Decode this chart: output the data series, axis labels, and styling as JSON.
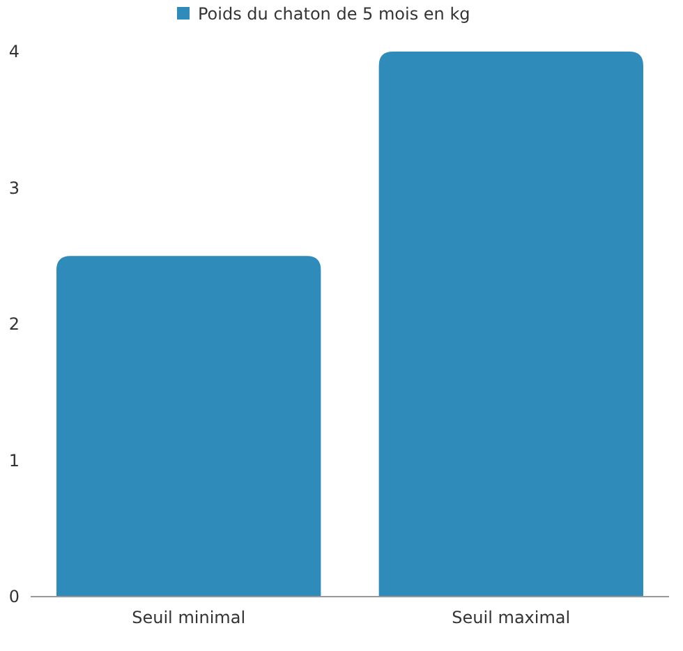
{
  "chart_data": {
    "type": "bar",
    "categories": [
      "Seuil minimal",
      "Seuil maximal"
    ],
    "series": [
      {
        "name": "Poids du chaton de 5 mois en kg",
        "color": "#2e8bba",
        "values": [
          2.5,
          4
        ]
      }
    ],
    "ylim": [
      0,
      4
    ],
    "yticks": [
      0,
      1,
      2,
      3,
      4
    ],
    "legend": "top"
  }
}
